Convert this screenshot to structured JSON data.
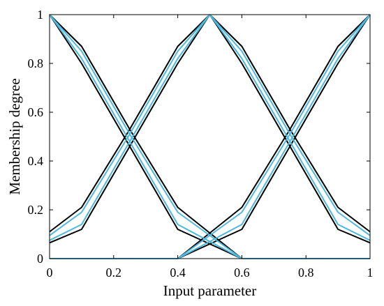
{
  "chart_data": {
    "type": "line",
    "xlabel": "Input parameter",
    "ylabel": "Membership degree",
    "xlim": [
      0,
      1
    ],
    "ylim": [
      0,
      1
    ],
    "xticks": [
      "0",
      "0.2",
      "0.4",
      "0.6",
      "0.8",
      "1"
    ],
    "yticks": [
      "0",
      "0.2",
      "0.4",
      "0.6",
      "0.8",
      "1"
    ],
    "grid": false,
    "colors": {
      "outer": "#000000",
      "inner": "#4cb8e0"
    },
    "series": [
      {
        "role": "outer",
        "x": [
          0,
          0.1,
          0.25,
          0.4,
          0.5
        ],
        "y": [
          0.065,
          0.12,
          0.46,
          0.8,
          1.0
        ]
      },
      {
        "role": "outer",
        "x": [
          0,
          0.1,
          0.25,
          0.4,
          0.5
        ],
        "y": [
          0.11,
          0.21,
          0.53,
          0.87,
          1.0
        ]
      },
      {
        "role": "inner",
        "x": [
          0,
          0.1,
          0.25,
          0.4,
          0.5
        ],
        "y": [
          0.075,
          0.14,
          0.48,
          0.82,
          1.0
        ]
      },
      {
        "role": "inner",
        "x": [
          0,
          0.1,
          0.25,
          0.4,
          0.5
        ],
        "y": [
          0.095,
          0.19,
          0.51,
          0.85,
          1.0
        ]
      },
      {
        "role": "outer",
        "x": [
          0,
          0.1,
          0.25,
          0.4,
          0.6
        ],
        "y": [
          1.0,
          0.87,
          0.53,
          0.21,
          0
        ]
      },
      {
        "role": "outer",
        "x": [
          0,
          0.1,
          0.25,
          0.4,
          0.6
        ],
        "y": [
          1.0,
          0.8,
          0.46,
          0.12,
          0
        ]
      },
      {
        "role": "inner",
        "x": [
          0,
          0.1,
          0.25,
          0.4,
          0.6
        ],
        "y": [
          1.0,
          0.85,
          0.51,
          0.19,
          0
        ]
      },
      {
        "role": "inner",
        "x": [
          0,
          0.1,
          0.25,
          0.4,
          0.6
        ],
        "y": [
          1.0,
          0.82,
          0.48,
          0.14,
          0
        ]
      },
      {
        "role": "outer",
        "x": [
          0.4,
          0.6,
          0.75,
          0.9,
          1.0
        ],
        "y": [
          0,
          0.21,
          0.53,
          0.87,
          1.0
        ]
      },
      {
        "role": "outer",
        "x": [
          0.4,
          0.6,
          0.75,
          0.9,
          1.0
        ],
        "y": [
          0,
          0.12,
          0.46,
          0.8,
          1.0
        ]
      },
      {
        "role": "inner",
        "x": [
          0.4,
          0.6,
          0.75,
          0.9,
          1.0
        ],
        "y": [
          0,
          0.19,
          0.51,
          0.85,
          1.0
        ]
      },
      {
        "role": "inner",
        "x": [
          0.4,
          0.6,
          0.75,
          0.9,
          1.0
        ],
        "y": [
          0,
          0.14,
          0.48,
          0.82,
          1.0
        ]
      },
      {
        "role": "outer",
        "x": [
          0.5,
          0.6,
          0.75,
          0.9,
          1.0
        ],
        "y": [
          1.0,
          0.8,
          0.46,
          0.12,
          0.065
        ]
      },
      {
        "role": "outer",
        "x": [
          0.5,
          0.6,
          0.75,
          0.9,
          1.0
        ],
        "y": [
          1.0,
          0.87,
          0.53,
          0.21,
          0.11
        ]
      },
      {
        "role": "inner",
        "x": [
          0.5,
          0.6,
          0.75,
          0.9,
          1.0
        ],
        "y": [
          1.0,
          0.82,
          0.48,
          0.14,
          0.075
        ]
      },
      {
        "role": "inner",
        "x": [
          0.5,
          0.6,
          0.75,
          0.9,
          1.0
        ],
        "y": [
          1.0,
          0.85,
          0.51,
          0.19,
          0.095
        ]
      },
      {
        "role": "inner",
        "x": [
          0,
          0.4
        ],
        "y": [
          0,
          0
        ]
      },
      {
        "role": "inner",
        "x": [
          0.6,
          1.0
        ],
        "y": [
          0,
          0
        ]
      }
    ]
  }
}
